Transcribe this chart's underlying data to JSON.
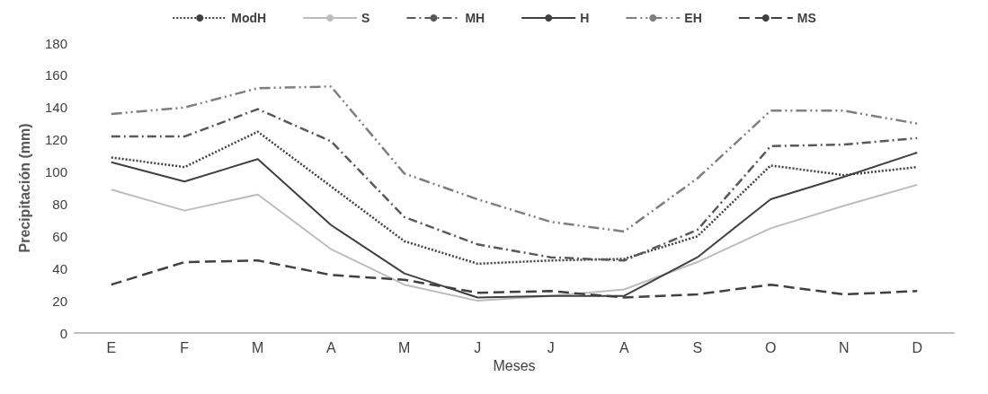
{
  "chart_data": {
    "type": "line",
    "xlabel": "Meses",
    "ylabel": "Precipitación (mm)",
    "categories": [
      "E",
      "F",
      "M",
      "A",
      "M",
      "J",
      "J",
      "A",
      "S",
      "O",
      "N",
      "D"
    ],
    "ylim": [
      0,
      180
    ],
    "yticks": [
      0,
      20,
      40,
      60,
      80,
      100,
      120,
      140,
      160,
      180
    ],
    "grid": false,
    "legend": "top",
    "marker": "none",
    "series": [
      {
        "name": "ModH",
        "color": "#404040",
        "line_style": "dotted",
        "values": [
          109,
          103,
          125,
          91,
          57,
          43,
          45,
          46,
          60,
          104,
          98,
          103
        ]
      },
      {
        "name": "S",
        "color": "#bdbdbd",
        "line_style": "solid",
        "values": [
          89,
          76,
          86,
          52,
          30,
          20,
          23,
          27,
          44,
          65,
          79,
          92
        ]
      },
      {
        "name": "MH",
        "color": "#595959",
        "line_style": "dashdot",
        "values": [
          122,
          122,
          139,
          119,
          72,
          55,
          47,
          45,
          64,
          116,
          117,
          121
        ]
      },
      {
        "name": "H",
        "color": "#404040",
        "line_style": "solid",
        "values": [
          106,
          94,
          108,
          67,
          37,
          22,
          23,
          23,
          47,
          83,
          97,
          112
        ]
      },
      {
        "name": "EH",
        "color": "#7f7f7f",
        "line_style": "dashdotdot",
        "values": [
          136,
          140,
          152,
          153,
          99,
          83,
          69,
          63,
          96,
          138,
          138,
          130
        ]
      },
      {
        "name": "MS",
        "color": "#404040",
        "line_style": "dashed",
        "values": [
          30,
          44,
          45,
          36,
          33,
          25,
          26,
          22,
          24,
          30,
          24,
          26
        ]
      }
    ]
  }
}
